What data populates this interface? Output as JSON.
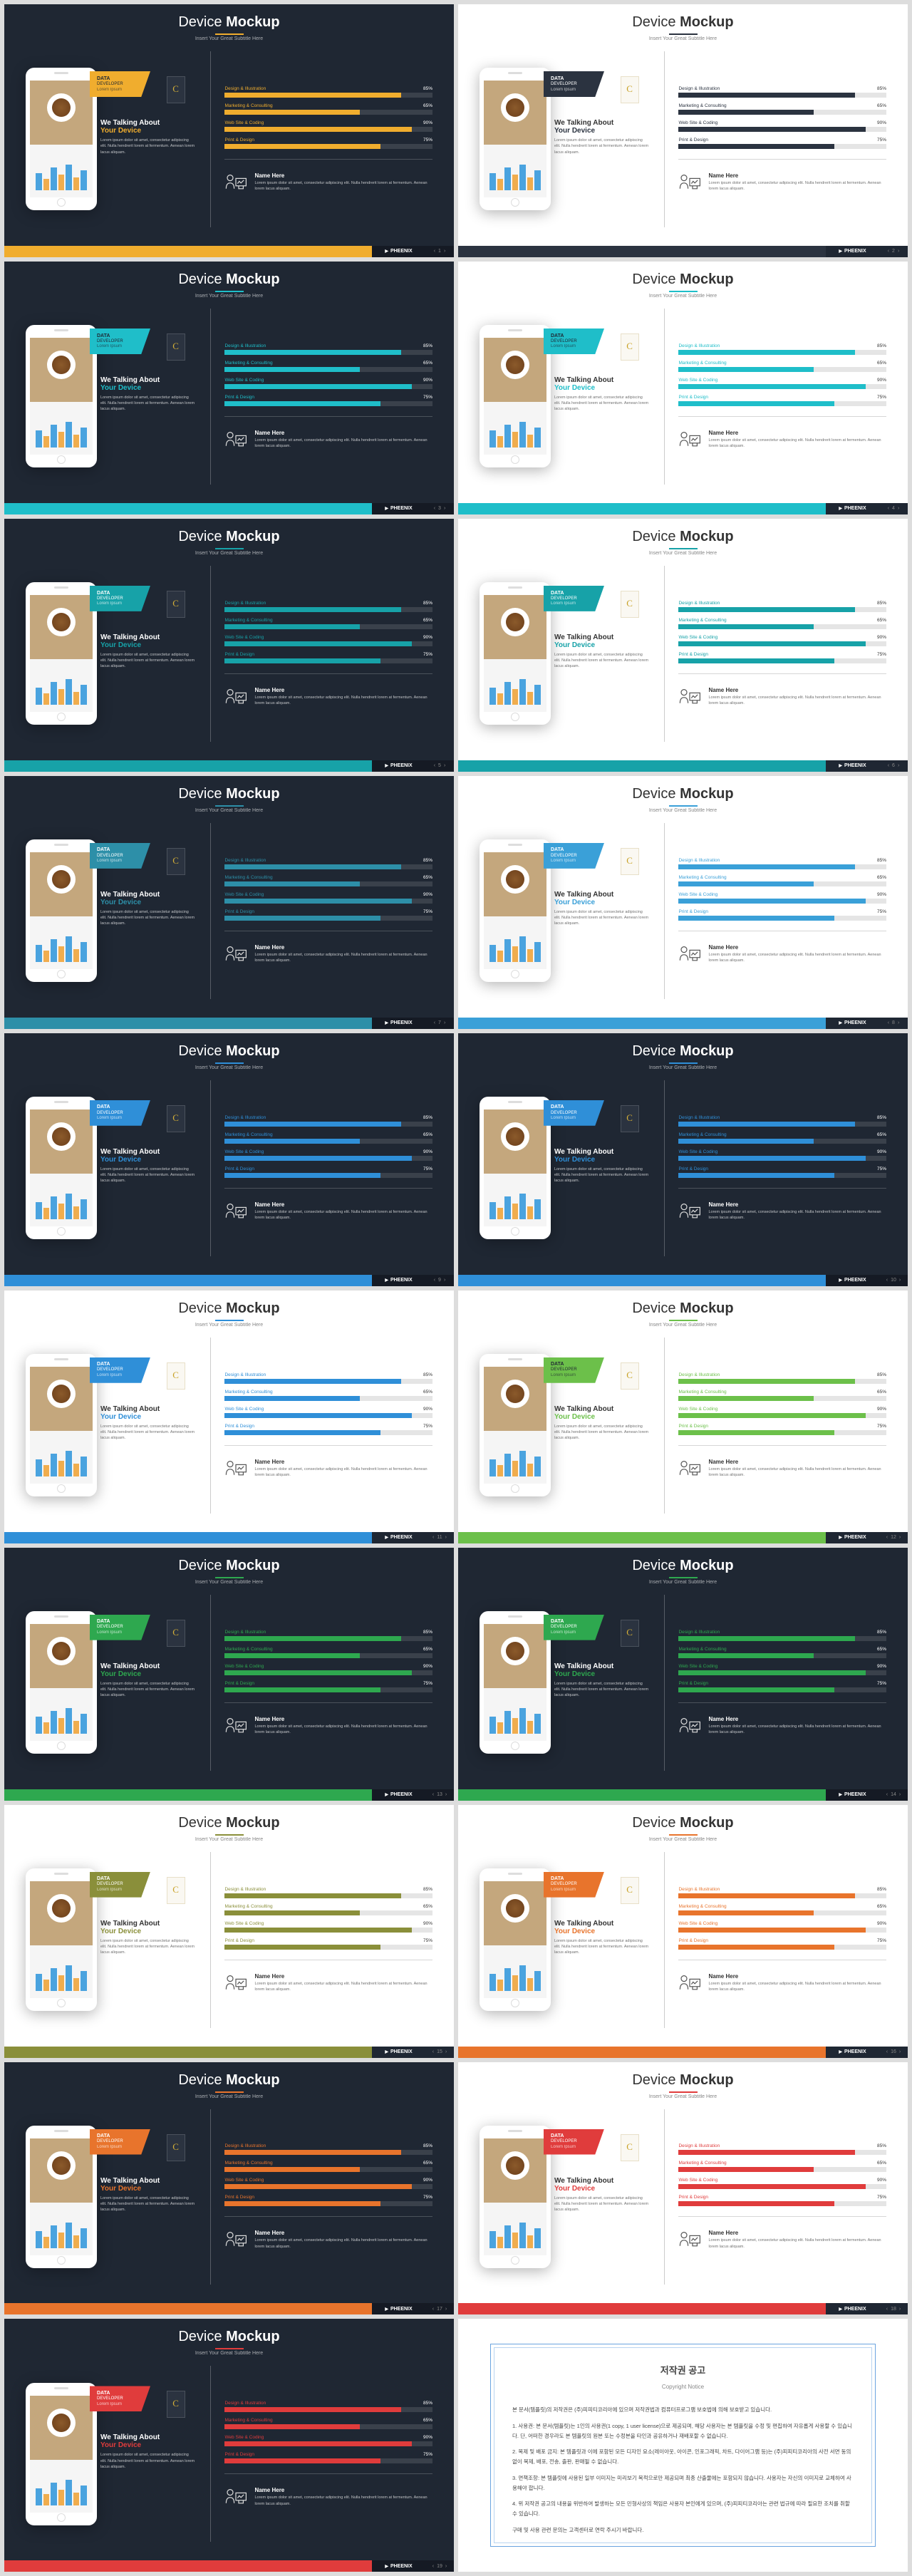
{
  "title_pre": "Device",
  "title_bold": "Mockup",
  "subtitle": "Insert Your Great Subtitle Here",
  "callout_line1": "DATA",
  "callout_line2": "DEVELOPER",
  "callout_line3": "Lorem Ipsum",
  "talking_line1": "We Talking About",
  "talking_line2": "Your Device",
  "talking_body": "Lorem ipsum dolor sit amet, consectetur adipiscing elit. Nulla hendrerit lorem at fermentum. Aenean lorem lacus aliquam.",
  "bars": [
    {
      "label": "Design & Illustration",
      "value": 85,
      "text": "85%"
    },
    {
      "label": "Marketing & Consulting",
      "value": 65,
      "text": "65%"
    },
    {
      "label": "Web Site & Coding",
      "value": 90,
      "text": "90%"
    },
    {
      "label": "Print & Design",
      "value": 75,
      "text": "75%"
    }
  ],
  "author_name": "Name Here",
  "author_body": "Lorem ipsum dolor sit amet, consectetur adipiscing elit. Nulla hendrerit lorem at fermentum. Aenean lorem lacus aliquam.",
  "brand": "PHEENIX",
  "nav_l": "‹",
  "nav_r": "›",
  "slides": [
    {
      "theme": "dark",
      "accent": "#f0ad2e",
      "bar": "#f0ad2e"
    },
    {
      "theme": "light",
      "accent": "#2b3340",
      "bar": "#2b3340"
    },
    {
      "theme": "dark",
      "accent": "#1fbec9",
      "bar": "#1fbec9"
    },
    {
      "theme": "light",
      "accent": "#1fbec9",
      "bar": "#1fbec9"
    },
    {
      "theme": "dark",
      "accent": "#17a2a8",
      "bar": "#17a2a8"
    },
    {
      "theme": "light",
      "accent": "#17a2a8",
      "bar": "#17a2a8"
    },
    {
      "theme": "dark",
      "accent": "#2d8fa8",
      "bar": "#2d8fa8"
    },
    {
      "theme": "light",
      "accent": "#3aa0d8",
      "bar": "#3aa0d8"
    },
    {
      "theme": "dark",
      "accent": "#2f8fd8",
      "bar": "#2f8fd8"
    },
    {
      "theme": "dark",
      "accent": "#2f8fd8",
      "bar": "#2f8fd8"
    },
    {
      "theme": "light",
      "accent": "#2f8fd8",
      "bar": "#2f8fd8"
    },
    {
      "theme": "light",
      "accent": "#6cc04a",
      "bar": "#6cc04a"
    },
    {
      "theme": "dark",
      "accent": "#2ea84f",
      "bar": "#2ea84f"
    },
    {
      "theme": "dark",
      "accent": "#2ea84f",
      "bar": "#2ea84f"
    },
    {
      "theme": "light",
      "accent": "#8a8f3a",
      "bar": "#8a8f3a"
    },
    {
      "theme": "light",
      "accent": "#e8742c",
      "bar": "#e8742c"
    },
    {
      "theme": "dark",
      "accent": "#e8742c",
      "bar": "#e8742c"
    },
    {
      "theme": "light",
      "accent": "#e03c3c",
      "bar": "#e03c3c"
    },
    {
      "theme": "dark",
      "accent": "#e03c3c",
      "bar": "#e03c3c"
    }
  ],
  "notice": {
    "title": "저작권 공고",
    "title_en": "Copyright Notice",
    "p1": "본 문서(템플릿)의 저작권은 (주)피피티코리아에 있으며 저작권법과 컴퓨터프로그램 보호법에 의해 보호받고 있습니다.",
    "p2": "1. 사용권: 본 문서(템플릿)는 1인의 사용권(1 copy, 1 user license)으로 제공되며, 해당 사용자는 본 템플릿을 수정 및 편집하여 자유롭게 사용할 수 있습니다. 단, 어떠한 경우라도 본 템플릿의 원본 또는 수정본을 타인과 공유하거나 재배포할 수 없습니다.",
    "p3": "2. 복제 및 배포 금지: 본 템플릿과 이에 포함된 모든 디자인 요소(레이아웃, 아이콘, 인포그래픽, 차트, 다이어그램 등)는 (주)피피티코리아의 사전 서면 동의 없이 복제, 배포, 전송, 출판, 판매될 수 없습니다.",
    "p4": "3. 면책조항: 본 템플릿에 사용된 일부 이미지는 미리보기 목적으로만 제공되며 최종 산출물에는 포함되지 않습니다. 사용자는 자신의 이미지로 교체하여 사용해야 합니다.",
    "p5": "4. 위 저작권 공고의 내용을 위반하여 발생하는 모든 민형사상의 책임은 사용자 본인에게 있으며, (주)피피티코리아는 관련 법규에 따라 필요한 조치를 취할 수 있습니다.",
    "p6": "구매 및 사용 관련 문의는 고객센터로 연락 주시기 바랍니다."
  }
}
